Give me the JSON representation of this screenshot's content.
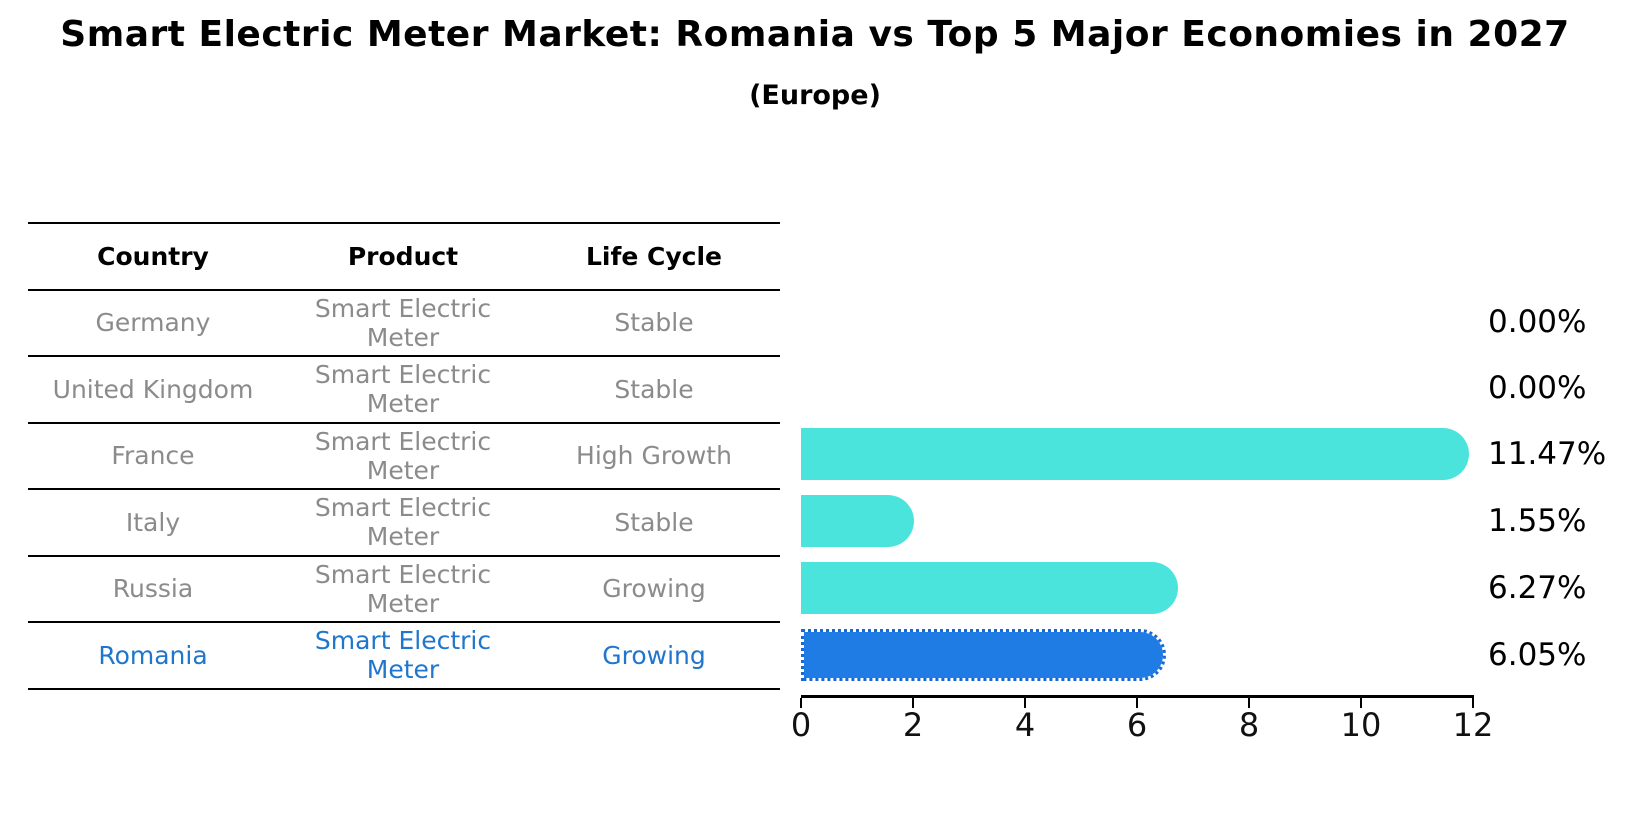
{
  "title": "Smart Electric Meter Market: Romania vs Top 5 Major Economies in 2027",
  "subtitle": "(Europe)",
  "table": {
    "columns": [
      "Country",
      "Product",
      "Life Cycle"
    ],
    "rows": [
      {
        "country": "Germany",
        "product": "Smart Electric Meter",
        "life_cycle": "Stable",
        "highlight": false
      },
      {
        "country": "United Kingdom",
        "product": "Smart Electric Meter",
        "life_cycle": "Stable",
        "highlight": false
      },
      {
        "country": "France",
        "product": "Smart Electric Meter",
        "life_cycle": "High Growth",
        "highlight": false
      },
      {
        "country": "Italy",
        "product": "Smart Electric Meter",
        "life_cycle": "Stable",
        "highlight": false
      },
      {
        "country": "Russia",
        "product": "Smart Electric Meter",
        "life_cycle": "Growing",
        "highlight": false
      },
      {
        "country": "Romania",
        "product": "Smart Electric Meter",
        "life_cycle": "Growing",
        "highlight": true
      }
    ]
  },
  "chart_data": {
    "type": "bar",
    "orientation": "horizontal",
    "title": "Smart Electric Meter Market: Romania vs Top 5 Major Economies in 2027 (Europe)",
    "categories": [
      "Germany",
      "United Kingdom",
      "France",
      "Italy",
      "Russia",
      "Romania"
    ],
    "values": [
      0.0,
      0.0,
      11.47,
      1.55,
      6.27,
      6.05
    ],
    "value_labels": [
      "0.00%",
      "0.00%",
      "11.47%",
      "1.55%",
      "6.27%",
      "6.05%"
    ],
    "xlim": [
      0,
      12
    ],
    "x_ticks": [
      0,
      2,
      4,
      6,
      8,
      10,
      12
    ],
    "x_tick_labels": [
      "0",
      "2",
      "4",
      "6",
      "8",
      "10",
      "12"
    ],
    "grid": false,
    "legend": "none",
    "bar_color": "#4BE4DD",
    "highlight_color": "#1E7CE4",
    "highlight_index": 5,
    "highlight_style": "dotted-border"
  },
  "colors": {
    "bar_cyan": "#4BE4DD",
    "bar_blue": "#1E7CE4",
    "table_text_gray": "#8b8b8b",
    "highlight_text_blue": "#1f76cc",
    "axis_black": "#000000"
  }
}
